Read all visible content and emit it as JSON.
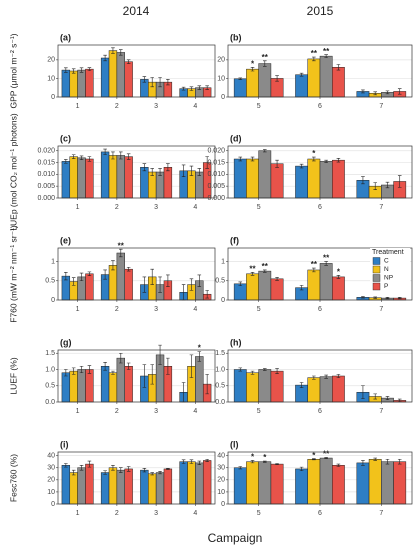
{
  "column_titles": [
    "2014",
    "2015"
  ],
  "xlabel": "Campaign",
  "legend_title": "Treatment",
  "chart_data": [
    {
      "type": "bar",
      "panel_label": "(a)",
      "ylabel": "GPP (μmol m⁻² s⁻¹)",
      "categories": [
        "1",
        "2",
        "3",
        "4"
      ],
      "ylim": [
        0,
        28
      ],
      "yticks": [
        0,
        10,
        20
      ],
      "grid": true,
      "series": [
        {
          "name": "C",
          "color": "#2e7ec4",
          "values": [
            14.5,
            21,
            9.5,
            4.5
          ],
          "errors": [
            1.2,
            1.5,
            1.5,
            0.8
          ],
          "significance": [
            null,
            null,
            null,
            null
          ]
        },
        {
          "name": "N",
          "color": "#f2c21b",
          "values": [
            14,
            25,
            8,
            4.5
          ],
          "errors": [
            1.2,
            1.5,
            2.5,
            1
          ],
          "significance": [
            null,
            null,
            null,
            null
          ]
        },
        {
          "name": "NP",
          "color": "#8a8a8a",
          "values": [
            14.5,
            24,
            8,
            5
          ],
          "errors": [
            1.2,
            1.5,
            2.5,
            1
          ],
          "significance": [
            null,
            null,
            null,
            null
          ]
        },
        {
          "name": "P",
          "color": "#e8534a",
          "values": [
            15,
            19,
            8,
            5
          ],
          "errors": [
            0.8,
            1,
            1.5,
            1
          ],
          "significance": [
            null,
            null,
            null,
            null
          ]
        }
      ]
    },
    {
      "type": "bar",
      "panel_label": "(b)",
      "categories": [
        "5",
        "6",
        "7"
      ],
      "ylim": [
        0,
        28
      ],
      "yticks": [
        0,
        10,
        20
      ],
      "grid": true,
      "series": [
        {
          "name": "C",
          "color": "#2e7ec4",
          "values": [
            9.8,
            12,
            3
          ],
          "errors": [
            0.5,
            0.8,
            0.8
          ],
          "significance": [
            null,
            null,
            null
          ]
        },
        {
          "name": "N",
          "color": "#f2c21b",
          "values": [
            15,
            20.5,
            2
          ],
          "errors": [
            1,
            1,
            0.8
          ],
          "significance": [
            "*",
            "**",
            null
          ]
        },
        {
          "name": "NP",
          "color": "#8a8a8a",
          "values": [
            18,
            22,
            2.5
          ],
          "errors": [
            1.5,
            0.8,
            0.8
          ],
          "significance": [
            "**",
            "**",
            null
          ]
        },
        {
          "name": "P",
          "color": "#e8534a",
          "values": [
            10,
            16,
            3
          ],
          "errors": [
            1.5,
            1.5,
            1.5
          ],
          "significance": [
            null,
            null,
            null
          ]
        }
      ]
    },
    {
      "type": "bar",
      "panel_label": "(c)",
      "ylabel": "LUEp (mol CO₂ mol⁻¹ photons)",
      "categories": [
        "1",
        "2",
        "3",
        "4"
      ],
      "ylim": [
        0,
        0.022
      ],
      "yticks": [
        {
          "value": 0,
          "label": "0.000"
        },
        {
          "value": 0.005,
          "label": "0.005"
        },
        {
          "value": 0.01,
          "label": "0.010"
        },
        {
          "value": 0.015,
          "label": "0.015"
        },
        {
          "value": 0.02,
          "label": "0.020"
        }
      ],
      "grid": true,
      "series": [
        {
          "name": "C",
          "color": "#2e7ec4",
          "values": [
            0.0155,
            0.0195,
            0.013,
            0.0115
          ],
          "errors": [
            0.0008,
            0.0012,
            0.0015,
            0.0025
          ],
          "significance": [
            null,
            null,
            null,
            null
          ]
        },
        {
          "name": "N",
          "color": "#f2c21b",
          "values": [
            0.0175,
            0.018,
            0.011,
            0.0115
          ],
          "errors": [
            0.0008,
            0.0015,
            0.0015,
            0.002
          ],
          "significance": [
            null,
            null,
            null,
            null
          ]
        },
        {
          "name": "NP",
          "color": "#8a8a8a",
          "values": [
            0.017,
            0.018,
            0.011,
            0.011
          ],
          "errors": [
            0.0008,
            0.0015,
            0.0015,
            0.0015
          ],
          "significance": [
            null,
            null,
            null,
            null
          ]
        },
        {
          "name": "P",
          "color": "#e8534a",
          "values": [
            0.0165,
            0.0175,
            0.013,
            0.015
          ],
          "errors": [
            0.001,
            0.0012,
            0.0015,
            0.0025
          ],
          "significance": [
            null,
            null,
            null,
            null
          ]
        }
      ]
    },
    {
      "type": "bar",
      "panel_label": "(d)",
      "categories": [
        "5",
        "6",
        "7"
      ],
      "ylim": [
        0,
        0.022
      ],
      "yticks": [
        {
          "value": 0,
          "label": "0.000"
        },
        {
          "value": 0.005,
          "label": "0.005"
        },
        {
          "value": 0.01,
          "label": "0.010"
        },
        {
          "value": 0.015,
          "label": "0.015"
        },
        {
          "value": 0.02,
          "label": "0.020"
        }
      ],
      "grid": true,
      "series": [
        {
          "name": "C",
          "color": "#2e7ec4",
          "values": [
            0.0165,
            0.0135,
            0.0075
          ],
          "errors": [
            0.0008,
            0.0008,
            0.0015
          ],
          "significance": [
            null,
            null,
            null
          ]
        },
        {
          "name": "N",
          "color": "#f2c21b",
          "values": [
            0.0165,
            0.0165,
            0.005
          ],
          "errors": [
            0.0008,
            0.0008,
            0.0015
          ],
          "significance": [
            null,
            "*",
            null
          ]
        },
        {
          "name": "NP",
          "color": "#8a8a8a",
          "values": [
            0.02,
            0.0155,
            0.0055
          ],
          "errors": [
            0.0005,
            0.0005,
            0.0012
          ],
          "significance": [
            null,
            null,
            null
          ]
        },
        {
          "name": "P",
          "color": "#e8534a",
          "values": [
            0.0145,
            0.016,
            0.007
          ],
          "errors": [
            0.0015,
            0.0008,
            0.0025
          ],
          "significance": [
            null,
            null,
            null
          ]
        }
      ]
    },
    {
      "type": "bar",
      "panel_label": "(e)",
      "ylabel": "F760 (mW m⁻² nm⁻¹ sr⁻¹)",
      "categories": [
        "1",
        "2",
        "3",
        "4"
      ],
      "ylim": [
        0,
        1.35
      ],
      "yticks": [
        0,
        0.5,
        1
      ],
      "grid": true,
      "series": [
        {
          "name": "C",
          "color": "#2e7ec4",
          "values": [
            0.62,
            0.66,
            0.4,
            0.2
          ],
          "errors": [
            0.1,
            0.12,
            0.2,
            0.2
          ],
          "significance": [
            null,
            null,
            null,
            null
          ]
        },
        {
          "name": "N",
          "color": "#f2c21b",
          "values": [
            0.48,
            0.9,
            0.6,
            0.4
          ],
          "errors": [
            0.1,
            0.12,
            0.2,
            0.15
          ],
          "significance": [
            null,
            null,
            null,
            null
          ]
        },
        {
          "name": "NP",
          "color": "#8a8a8a",
          "values": [
            0.6,
            1.22,
            0.4,
            0.5
          ],
          "errors": [
            0.1,
            0.1,
            0.2,
            0.15
          ],
          "significance": [
            null,
            "**",
            null,
            null
          ]
        },
        {
          "name": "P",
          "color": "#e8534a",
          "values": [
            0.68,
            0.8,
            0.5,
            0.15
          ],
          "errors": [
            0.05,
            0.05,
            0.15,
            0.1
          ],
          "significance": [
            null,
            null,
            null,
            null
          ]
        }
      ]
    },
    {
      "type": "bar",
      "panel_label": "(f)",
      "categories": [
        "5",
        "6",
        "7"
      ],
      "ylim": [
        0,
        1.35
      ],
      "yticks": [
        0,
        0.5,
        1
      ],
      "grid": true,
      "series": [
        {
          "name": "C",
          "color": "#2e7ec4",
          "values": [
            0.42,
            0.32,
            0.07
          ],
          "errors": [
            0.05,
            0.06,
            0.02
          ],
          "significance": [
            null,
            null,
            null
          ]
        },
        {
          "name": "N",
          "color": "#f2c21b",
          "values": [
            0.68,
            0.78,
            0.06
          ],
          "errors": [
            0.04,
            0.05,
            0.02
          ],
          "significance": [
            "**",
            "**",
            null
          ]
        },
        {
          "name": "NP",
          "color": "#8a8a8a",
          "values": [
            0.75,
            0.95,
            0.05
          ],
          "errors": [
            0.03,
            0.05,
            0.02
          ],
          "significance": [
            "**",
            "**",
            null
          ]
        },
        {
          "name": "P",
          "color": "#e8534a",
          "values": [
            0.55,
            0.6,
            0.05
          ],
          "errors": [
            0.04,
            0.04,
            0.02
          ],
          "significance": [
            null,
            "*",
            null
          ]
        }
      ]
    },
    {
      "type": "bar",
      "panel_label": "(g)",
      "ylabel": "LUEF (%)",
      "categories": [
        "1",
        "2",
        "3",
        "4"
      ],
      "ylim": [
        0,
        1.6
      ],
      "yticks": [
        {
          "value": 0,
          "label": "0.0"
        },
        {
          "value": 0.5,
          "label": "0.5"
        },
        {
          "value": 1,
          "label": "1.0"
        },
        {
          "value": 1.5,
          "label": "1.5"
        }
      ],
      "grid": true,
      "series": [
        {
          "name": "C",
          "color": "#2e7ec4",
          "values": [
            0.9,
            1.1,
            0.8,
            0.3
          ],
          "errors": [
            0.1,
            0.12,
            0.35,
            0.3
          ],
          "significance": [
            null,
            null,
            null,
            null
          ]
        },
        {
          "name": "N",
          "color": "#f2c21b",
          "values": [
            0.95,
            0.9,
            0.85,
            1.1
          ],
          "errors": [
            0.1,
            0.05,
            0.3,
            0.35
          ],
          "significance": [
            null,
            null,
            null,
            null
          ]
        },
        {
          "name": "NP",
          "color": "#8a8a8a",
          "values": [
            1.0,
            1.35,
            1.45,
            1.4
          ],
          "errors": [
            0.1,
            0.15,
            0.3,
            0.15
          ],
          "significance": [
            null,
            null,
            null,
            "*"
          ]
        },
        {
          "name": "P",
          "color": "#e8534a",
          "values": [
            1.0,
            1.1,
            1.1,
            0.55
          ],
          "errors": [
            0.12,
            0.1,
            0.25,
            0.3
          ],
          "significance": [
            null,
            null,
            null,
            null
          ]
        }
      ]
    },
    {
      "type": "bar",
      "panel_label": "(h)",
      "categories": [
        "5",
        "6",
        "7"
      ],
      "ylim": [
        0,
        1.6
      ],
      "yticks": [
        {
          "value": 0,
          "label": "0.0"
        },
        {
          "value": 0.5,
          "label": "0.5"
        },
        {
          "value": 1,
          "label": "1.0"
        },
        {
          "value": 1.5,
          "label": "1.5"
        }
      ],
      "grid": true,
      "series": [
        {
          "name": "C",
          "color": "#2e7ec4",
          "values": [
            1.0,
            0.52,
            0.3
          ],
          "errors": [
            0.05,
            0.08,
            0.2
          ],
          "significance": [
            null,
            null,
            null
          ]
        },
        {
          "name": "N",
          "color": "#f2c21b",
          "values": [
            0.9,
            0.75,
            0.17
          ],
          "errors": [
            0.05,
            0.05,
            0.08
          ],
          "significance": [
            null,
            null,
            null
          ]
        },
        {
          "name": "NP",
          "color": "#8a8a8a",
          "values": [
            1.0,
            0.78,
            0.12
          ],
          "errors": [
            0.03,
            0.05,
            0.05
          ],
          "significance": [
            null,
            null,
            null
          ]
        },
        {
          "name": "P",
          "color": "#e8534a",
          "values": [
            0.95,
            0.8,
            0.05
          ],
          "errors": [
            0.08,
            0.05,
            0.04
          ],
          "significance": [
            null,
            null,
            null
          ]
        }
      ]
    },
    {
      "type": "bar",
      "panel_label": "(i)",
      "ylabel": "Fesc760 (%)",
      "categories": [
        "1",
        "2",
        "3",
        "4"
      ],
      "ylim": [
        0,
        43
      ],
      "yticks": [
        0,
        10,
        20,
        30,
        40
      ],
      "grid": true,
      "series": [
        {
          "name": "C",
          "color": "#2e7ec4",
          "values": [
            32,
            26,
            28,
            35
          ],
          "errors": [
            1.5,
            1.5,
            1.5,
            1.5
          ],
          "significance": [
            null,
            null,
            null,
            null
          ]
        },
        {
          "name": "N",
          "color": "#f2c21b",
          "values": [
            26,
            30,
            25,
            35
          ],
          "errors": [
            2,
            2,
            1,
            1.5
          ],
          "significance": [
            null,
            null,
            null,
            null
          ]
        },
        {
          "name": "NP",
          "color": "#8a8a8a",
          "values": [
            30,
            28,
            26,
            34
          ],
          "errors": [
            2,
            2,
            1,
            1.5
          ],
          "significance": [
            null,
            null,
            null,
            null
          ]
        },
        {
          "name": "P",
          "color": "#e8534a",
          "values": [
            33,
            29,
            29,
            36
          ],
          "errors": [
            2.5,
            2,
            0.5,
            1
          ],
          "significance": [
            null,
            null,
            null,
            null
          ]
        }
      ]
    },
    {
      "type": "bar",
      "panel_label": "(l)",
      "categories": [
        "5",
        "6",
        "7"
      ],
      "ylim": [
        0,
        43
      ],
      "yticks": [
        0,
        10,
        20,
        30,
        40
      ],
      "grid": true,
      "series": [
        {
          "name": "C",
          "color": "#2e7ec4",
          "values": [
            30,
            29,
            34
          ],
          "errors": [
            1,
            1.5,
            2
          ],
          "significance": [
            null,
            null,
            null
          ]
        },
        {
          "name": "N",
          "color": "#f2c21b",
          "values": [
            35,
            37,
            37
          ],
          "errors": [
            1,
            0.5,
            1
          ],
          "significance": [
            "*",
            "*",
            null
          ]
        },
        {
          "name": "NP",
          "color": "#8a8a8a",
          "values": [
            35,
            38,
            35
          ],
          "errors": [
            0.5,
            0.5,
            2
          ],
          "significance": [
            "*",
            "**",
            null
          ]
        },
        {
          "name": "P",
          "color": "#e8534a",
          "values": [
            33,
            32,
            35
          ],
          "errors": [
            0.5,
            1,
            2
          ],
          "significance": [
            null,
            null,
            null
          ]
        }
      ]
    }
  ]
}
